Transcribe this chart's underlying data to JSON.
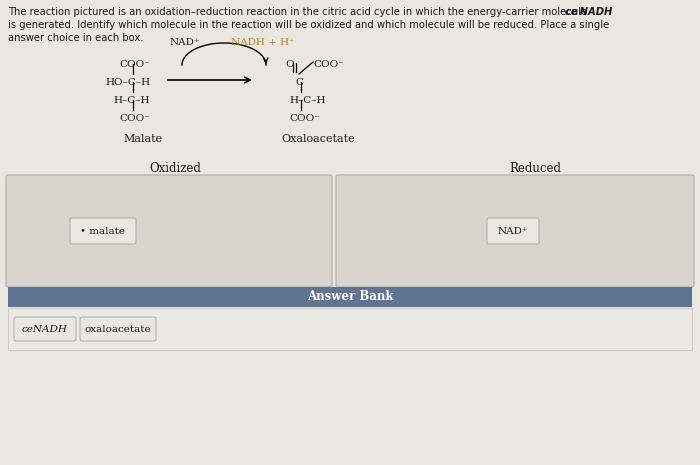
{
  "bg_color": "#eae7e0",
  "header_line1": "The reaction pictured is an oxidation–reduction reaction in the citric acid cycle in which the energy-carrier molecule ",
  "header_line1_italic": "ce NADH",
  "header_line2": "is generated. Identify which molecule in the reaction will be oxidized and which molecule will be reduced. Place a single",
  "header_line3": "answer choice in each box.",
  "nad_label": "NAD⁺",
  "nadh_label": "NADH + H⁺",
  "malate_label": "Malate",
  "oxaloacetate_label": "Oxaloacetate",
  "oxidized_label": "Oxidized",
  "reduced_label": "Reduced",
  "answer_bank_label": "Answer Bank",
  "box1_content": "• malate",
  "box2_content": "NAD⁺",
  "bank_item1": "ceNADH",
  "bank_item2": "oxaloacetate",
  "answer_bank_bg": "#5f7494",
  "box_bg": "#d8d5cc",
  "tag_bg": "#eae7e0",
  "tag_border": "#aaaaaa",
  "orange_color": "#b8860b",
  "dark_color": "#1a1a1a",
  "white_color": "#ffffff",
  "page_bg": "#eae7e0"
}
